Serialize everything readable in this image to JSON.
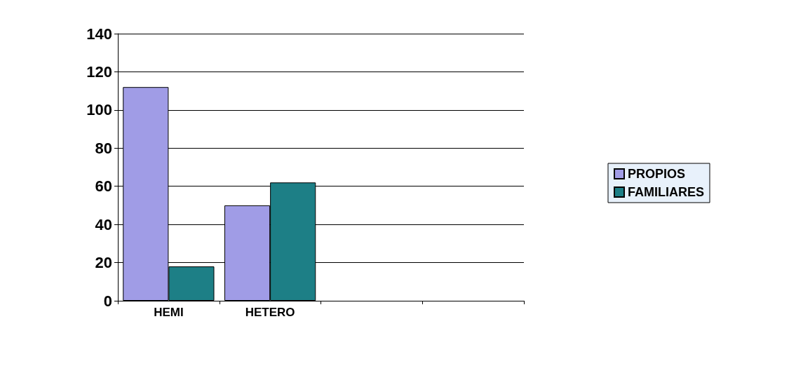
{
  "chart_data": {
    "type": "bar",
    "categories": [
      "HEMI",
      "HETERO",
      null,
      null
    ],
    "series": [
      {
        "name": "PROPIOS",
        "color": "#a09ce6",
        "values": [
          112,
          50,
          null,
          null
        ]
      },
      {
        "name": "FAMILIARES",
        "color": "#1d7f86",
        "values": [
          18,
          62,
          null,
          null
        ]
      }
    ],
    "ylim": [
      0,
      140
    ],
    "yticks": [
      0,
      20,
      40,
      60,
      80,
      100,
      120,
      140
    ],
    "grid": "y",
    "legend": "right"
  }
}
